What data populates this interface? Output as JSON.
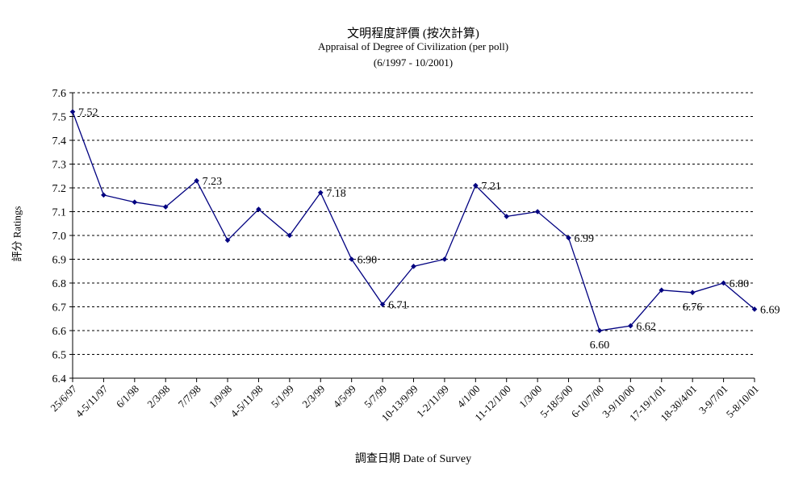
{
  "chart_data": {
    "type": "line",
    "title": "文明程度評價 (按次計算)",
    "subtitle": "Appraisal of Degree of Civilization (per poll)",
    "period": "(6/1997 - 10/2001)",
    "xlabel": "調查日期 Date of Survey",
    "ylabel": "評分 Ratings",
    "ylim": [
      6.4,
      7.6
    ],
    "yticks": [
      "6.4",
      "6.5",
      "6.6",
      "6.7",
      "6.8",
      "6.9",
      "7.0",
      "7.1",
      "7.2",
      "7.3",
      "7.4",
      "7.5",
      "7.6"
    ],
    "grid": true,
    "categories": [
      "25/6/97",
      "4-5/11/97",
      "6/1/98",
      "2/3/98",
      "7/7/98",
      "1/9/98",
      "4-5/11/98",
      "5/1/99",
      "2/3/99",
      "4/5/99",
      "5/7/99",
      "10-13/9/99",
      "1-2/11/99",
      "4/1/00",
      "11-12/1/00",
      "1/3/00",
      "5-18/5/00",
      "6-10/7/00",
      "3-9/10/00",
      "17-19/1/01",
      "18-30/4/01",
      "3-9/7/01",
      "5-8/10/01"
    ],
    "values": [
      7.52,
      7.17,
      7.14,
      7.12,
      7.23,
      6.98,
      7.11,
      7.0,
      7.18,
      6.9,
      6.71,
      6.87,
      6.9,
      7.21,
      7.08,
      7.1,
      6.99,
      6.6,
      6.62,
      6.77,
      6.76,
      6.8,
      6.69
    ],
    "data_labels": [
      {
        "index": 0,
        "text": "7.52"
      },
      {
        "index": 4,
        "text": "7.23"
      },
      {
        "index": 8,
        "text": "7.18"
      },
      {
        "index": 9,
        "text": "6.90"
      },
      {
        "index": 10,
        "text": "6.71"
      },
      {
        "index": 13,
        "text": "7.21"
      },
      {
        "index": 16,
        "text": "6.99"
      },
      {
        "index": 17,
        "text": "6.60"
      },
      {
        "index": 18,
        "text": "6.62"
      },
      {
        "index": 20,
        "text": "6.76"
      },
      {
        "index": 21,
        "text": "6.80"
      },
      {
        "index": 22,
        "text": "6.69"
      }
    ],
    "line_color": "#000080",
    "grid_color": "#000000"
  }
}
